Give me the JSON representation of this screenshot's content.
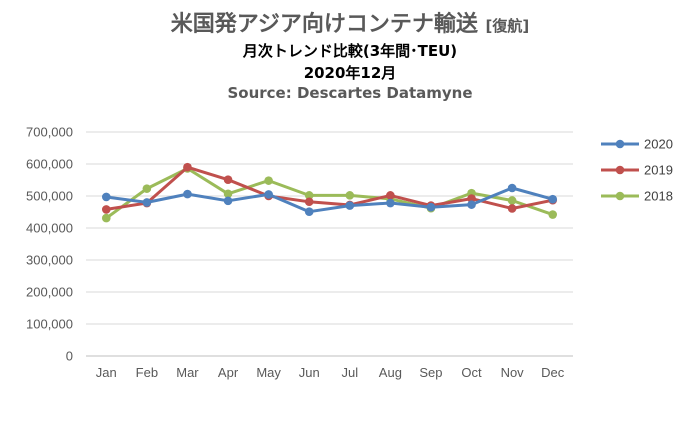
{
  "header": {
    "title_main": "米国発アジア向けコンテナ輸送",
    "title_tag": "[復航]",
    "subtitle": "月次トレンド比較(3年間･TEU)",
    "period": "2020年12月",
    "source": "Source: Descartes Datamyne"
  },
  "chart_data": {
    "type": "line",
    "title": "米国発アジア向けコンテナ輸送 [復航]",
    "subtitle": "月次トレンド比較(3年間･TEU)",
    "categories": [
      "Jan",
      "Feb",
      "Mar",
      "Apr",
      "May",
      "Jun",
      "Jul",
      "Aug",
      "Sep",
      "Oct",
      "Nov",
      "Dec"
    ],
    "ylim": [
      0,
      700000
    ],
    "yticks": [
      0,
      100000,
      200000,
      300000,
      400000,
      500000,
      600000,
      700000
    ],
    "ytick_labels": [
      "0",
      "100,000",
      "200,000",
      "300,000",
      "400,000",
      "500,000",
      "600,000",
      "700,000"
    ],
    "grid": true,
    "legend_position": "right",
    "series": [
      {
        "name": "2020",
        "color": "#4F81BD",
        "values": [
          497000,
          480000,
          506000,
          485000,
          505000,
          451000,
          470000,
          478000,
          465000,
          473000,
          525000,
          490000
        ]
      },
      {
        "name": "2019",
        "color": "#C0504D",
        "values": [
          458000,
          478000,
          590000,
          551000,
          500000,
          482000,
          472000,
          502000,
          470000,
          492000,
          461000,
          487000
        ]
      },
      {
        "name": "2018",
        "color": "#9BBB59",
        "values": [
          431000,
          523000,
          586000,
          507000,
          548000,
          502000,
          502000,
          491000,
          462000,
          509000,
          486000,
          442000
        ]
      }
    ]
  }
}
